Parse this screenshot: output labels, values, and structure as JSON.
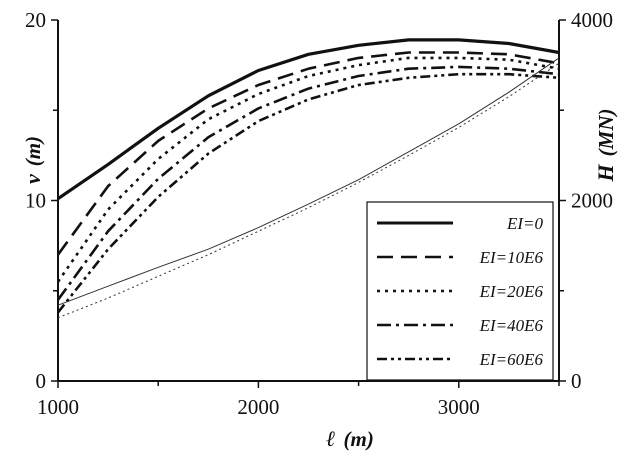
{
  "chart_data": {
    "type": "line",
    "xlabel": {
      "symbol": "ℓ",
      "unit": "(m)"
    },
    "ylabel_left": {
      "symbol": "v",
      "unit": "(m)"
    },
    "ylabel_right": {
      "symbol": "H",
      "unit": "(MN)"
    },
    "xlim": [
      1000,
      3500
    ],
    "ylim_left": [
      0,
      20
    ],
    "ylim_right": [
      0,
      4000
    ],
    "xticks": [
      "1000",
      "2000",
      "3000"
    ],
    "yticks_left": [
      "0",
      "10",
      "20"
    ],
    "yticks_right": [
      "0",
      "2000",
      "4000"
    ],
    "legend_position": "bottom-right",
    "grid": false,
    "sag_series": [
      {
        "name": "EI=0",
        "dash": "solid",
        "x": [
          1000,
          1250,
          1500,
          1750,
          2000,
          2250,
          2500,
          2750,
          3000,
          3250,
          3500
        ],
        "y": [
          10.1,
          12.0,
          14.0,
          15.8,
          17.2,
          18.1,
          18.6,
          18.9,
          18.9,
          18.7,
          18.2
        ]
      },
      {
        "name": "EI=10E6",
        "dash": "long-dash",
        "x": [
          1000,
          1250,
          1500,
          1750,
          2000,
          2250,
          2500,
          2750,
          3000,
          3250,
          3500
        ],
        "y": [
          7.0,
          10.8,
          13.3,
          15.1,
          16.4,
          17.3,
          17.9,
          18.2,
          18.2,
          18.1,
          17.6
        ]
      },
      {
        "name": "EI=20E6",
        "dash": "dotted",
        "x": [
          1000,
          1250,
          1500,
          1750,
          2000,
          2250,
          2500,
          2750,
          3000,
          3250,
          3500
        ],
        "y": [
          5.5,
          9.5,
          12.3,
          14.5,
          15.9,
          16.9,
          17.5,
          17.9,
          17.9,
          17.8,
          17.3
        ]
      },
      {
        "name": "EI=40E6",
        "dash": "dash-dot",
        "x": [
          1000,
          1250,
          1500,
          1750,
          2000,
          2250,
          2500,
          2750,
          3000,
          3250,
          3500
        ],
        "y": [
          4.5,
          8.3,
          11.2,
          13.5,
          15.1,
          16.2,
          16.9,
          17.3,
          17.4,
          17.3,
          17.0
        ]
      },
      {
        "name": "EI=60E6",
        "dash": "dash-dot-dot",
        "x": [
          1000,
          1250,
          1500,
          1750,
          2000,
          2250,
          2500,
          2750,
          3000,
          3250,
          3500
        ],
        "y": [
          3.8,
          7.3,
          10.2,
          12.6,
          14.4,
          15.6,
          16.4,
          16.8,
          17.0,
          17.0,
          16.8
        ]
      }
    ],
    "force_series": [
      {
        "dash": "thin-solid",
        "x": [
          1000,
          1250,
          1500,
          1750,
          2000,
          2250,
          2500,
          2750,
          3000,
          3250,
          3500
        ],
        "y": [
          840,
          1050,
          1260,
          1460,
          1700,
          1960,
          2230,
          2540,
          2850,
          3200,
          3580
        ]
      },
      {
        "dash": "thin-dotted",
        "x": [
          1000,
          1250,
          1500,
          1750,
          2000,
          2250,
          2500,
          2750,
          3000,
          3250,
          3500
        ],
        "y": [
          700,
          920,
          1160,
          1400,
          1660,
          1920,
          2200,
          2500,
          2810,
          3150,
          3520
        ]
      }
    ]
  }
}
